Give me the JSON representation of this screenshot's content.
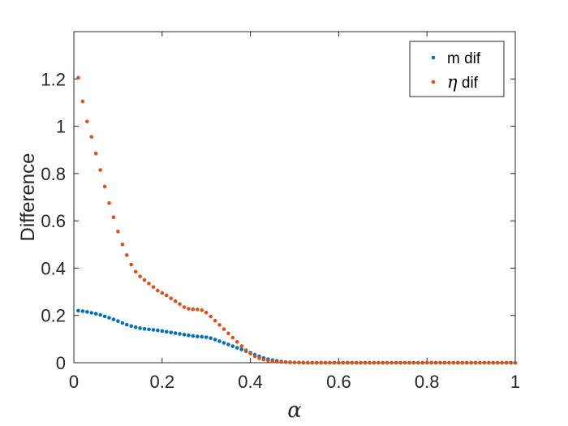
{
  "chart_data": {
    "type": "scatter",
    "xlabel": "α",
    "ylabel": "Difference",
    "xlim": [
      0,
      1
    ],
    "ylim": [
      0,
      1.4
    ],
    "xticks": [
      0,
      0.2,
      0.4,
      0.6,
      0.8,
      1
    ],
    "xtick_labels": [
      "0",
      "0.2",
      "0.4",
      "0.6",
      "0.8",
      "1"
    ],
    "yticks": [
      0,
      0.2,
      0.4,
      0.6,
      0.8,
      1,
      1.2
    ],
    "ytick_labels": [
      "0",
      "0.2",
      "0.4",
      "0.6",
      "0.8",
      "1",
      "1.2"
    ],
    "grid": false,
    "legend_position": "top-right",
    "x": [
      0.01,
      0.02,
      0.03,
      0.04,
      0.05,
      0.06,
      0.07,
      0.08,
      0.09,
      0.1,
      0.11,
      0.12,
      0.13,
      0.14,
      0.15,
      0.16,
      0.17,
      0.18,
      0.19,
      0.2,
      0.21,
      0.22,
      0.23,
      0.24,
      0.25,
      0.26,
      0.27,
      0.28,
      0.29,
      0.3,
      0.31,
      0.32,
      0.33,
      0.34,
      0.35,
      0.36,
      0.37,
      0.38,
      0.39,
      0.4,
      0.41,
      0.42,
      0.43,
      0.44,
      0.45,
      0.46,
      0.47,
      0.48,
      0.49,
      0.5,
      0.51,
      0.52,
      0.53,
      0.54,
      0.55,
      0.56,
      0.57,
      0.58,
      0.59,
      0.6,
      0.61,
      0.62,
      0.63,
      0.64,
      0.65,
      0.66,
      0.67,
      0.68,
      0.69,
      0.7,
      0.71,
      0.72,
      0.73,
      0.74,
      0.75,
      0.76,
      0.77,
      0.78,
      0.79,
      0.8,
      0.81,
      0.82,
      0.83,
      0.84,
      0.85,
      0.86,
      0.87,
      0.88,
      0.89,
      0.9,
      0.91,
      0.92,
      0.93,
      0.94,
      0.95,
      0.96,
      0.97,
      0.98,
      0.99,
      1.0
    ],
    "series": [
      {
        "name": "m dif",
        "color": "#0072BD",
        "values": [
          0.22,
          0.218,
          0.215,
          0.211,
          0.207,
          0.202,
          0.196,
          0.19,
          0.183,
          0.176,
          0.168,
          0.161,
          0.155,
          0.15,
          0.146,
          0.143,
          0.141,
          0.139,
          0.137,
          0.134,
          0.131,
          0.128,
          0.125,
          0.122,
          0.119,
          0.116,
          0.113,
          0.111,
          0.11,
          0.108,
          0.104,
          0.098,
          0.091,
          0.084,
          0.077,
          0.07,
          0.063,
          0.056,
          0.049,
          0.042,
          0.034,
          0.027,
          0.02,
          0.015,
          0.011,
          0.008,
          0.005,
          0.003,
          0.002,
          0.001,
          0.001,
          0.0005,
          0.0002,
          0.0001,
          0,
          0,
          0,
          0,
          0,
          0,
          0,
          0,
          0,
          0,
          0,
          0,
          0,
          0,
          0,
          0,
          0,
          0,
          0,
          0,
          0,
          0,
          0,
          0,
          0,
          0,
          0,
          0,
          0,
          0,
          0,
          0,
          0,
          0,
          0,
          0,
          0,
          0,
          0,
          0,
          0,
          0,
          0,
          0,
          0,
          0
        ]
      },
      {
        "name": "η dif",
        "color": "#D95319",
        "values": [
          1.205,
          1.105,
          1.02,
          0.955,
          0.885,
          0.815,
          0.745,
          0.675,
          0.615,
          0.555,
          0.5,
          0.455,
          0.415,
          0.385,
          0.365,
          0.35,
          0.335,
          0.32,
          0.305,
          0.295,
          0.285,
          0.272,
          0.26,
          0.248,
          0.235,
          0.228,
          0.226,
          0.225,
          0.222,
          0.212,
          0.195,
          0.178,
          0.16,
          0.142,
          0.124,
          0.106,
          0.088,
          0.07,
          0.053,
          0.038,
          0.027,
          0.019,
          0.013,
          0.009,
          0.006,
          0.004,
          0.003,
          0.002,
          0.0015,
          0.001,
          0.0005,
          0.0002,
          0.0001,
          0,
          0,
          0,
          0,
          0,
          0,
          0,
          0,
          0,
          0,
          0,
          0,
          0,
          0,
          0,
          0,
          0,
          0,
          0,
          0,
          0,
          0,
          0,
          0,
          0,
          0,
          0,
          0,
          0,
          0,
          0,
          0,
          0,
          0,
          0,
          0,
          0,
          0,
          0,
          0,
          0,
          0,
          0,
          0,
          0,
          0,
          0
        ]
      }
    ]
  },
  "legend": {
    "m_label": "m dif",
    "eta_symbol": "η",
    "eta_text": " dif"
  }
}
